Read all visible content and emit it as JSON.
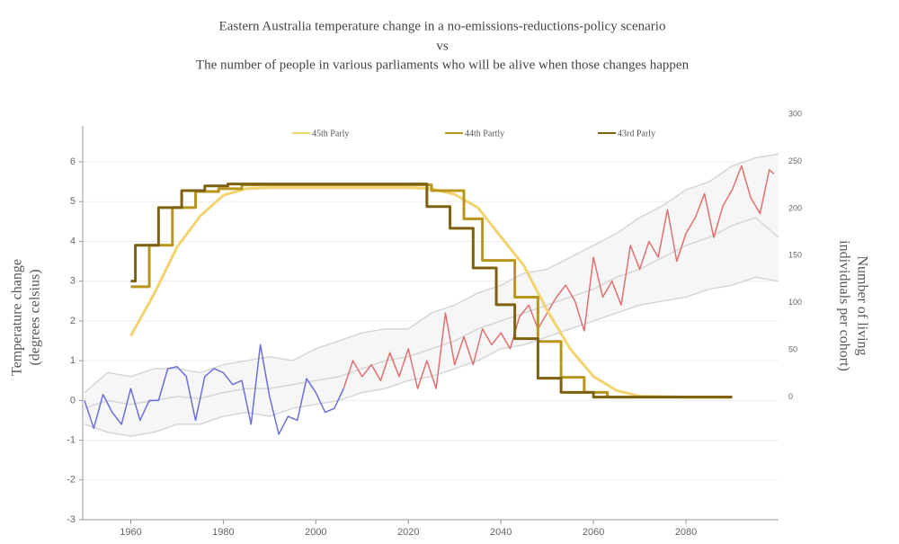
{
  "chart_data": {
    "type": "line",
    "title": [
      "Eastern Australia temperature change in a no-emissions-reductions-policy scenario",
      "vs",
      "The number of people in various parliaments who will be alive when those changes happen"
    ],
    "y_label": [
      "Temperature change",
      "(degrees celsius)"
    ],
    "y2_label": [
      "Number of living",
      "individuals per cohort)"
    ],
    "xlim": [
      1950,
      2100
    ],
    "xticks": [
      1960,
      1980,
      2000,
      2020,
      2040,
      2060,
      2080
    ],
    "ylim": [
      -3,
      7.2
    ],
    "yticks": [
      -3,
      -2,
      -1,
      0,
      1,
      2,
      3,
      4,
      5,
      6
    ],
    "y2lim": [
      -130,
      300
    ],
    "y2ticks": [
      0,
      50,
      100,
      150,
      200,
      250,
      300
    ],
    "grid": true,
    "band": {
      "color": "#d6d6d6",
      "fill": "#f6f6f6",
      "x": [
        1950,
        1955,
        1960,
        1965,
        1970,
        1975,
        1980,
        1985,
        1990,
        1995,
        2000,
        2005,
        2010,
        2015,
        2020,
        2025,
        2030,
        2035,
        2040,
        2045,
        2050,
        2055,
        2060,
        2065,
        2070,
        2075,
        2080,
        2085,
        2090,
        2095,
        2100
      ],
      "upper": [
        0.2,
        0.7,
        0.6,
        0.8,
        0.8,
        0.7,
        0.9,
        1.0,
        1.1,
        1.0,
        1.3,
        1.5,
        1.7,
        1.8,
        1.8,
        2.2,
        2.4,
        2.7,
        2.9,
        3.2,
        3.3,
        3.6,
        3.9,
        4.2,
        4.6,
        4.9,
        5.3,
        5.5,
        5.9,
        6.1,
        6.2
      ],
      "lower": [
        -0.6,
        -0.8,
        -0.9,
        -0.8,
        -0.6,
        -0.6,
        -0.4,
        -0.3,
        -0.4,
        -0.2,
        -0.1,
        0.0,
        0.2,
        0.3,
        0.5,
        0.6,
        0.8,
        1.0,
        1.3,
        1.4,
        1.6,
        1.8,
        2.0,
        2.2,
        2.4,
        2.5,
        2.6,
        2.8,
        2.9,
        3.1,
        3.0
      ]
    },
    "series": [
      {
        "color": "#d6d6d6",
        "x": [
          1950,
          1955,
          1960,
          1965,
          1970,
          1975,
          1980,
          1985,
          1990,
          1995,
          2000,
          2005,
          2010,
          2015,
          2020,
          2025,
          2030,
          2035,
          2040,
          2045,
          2050,
          2055,
          2060,
          2065,
          2070,
          2075,
          2080,
          2085,
          2090,
          2095,
          2100
        ],
        "values": [
          -0.2,
          0.0,
          -0.1,
          0.0,
          0.1,
          0.05,
          0.2,
          0.3,
          0.3,
          0.4,
          0.5,
          0.6,
          0.8,
          1.0,
          1.1,
          1.3,
          1.5,
          1.8,
          2.0,
          2.2,
          2.4,
          2.6,
          2.8,
          3.1,
          3.3,
          3.6,
          3.9,
          4.1,
          4.4,
          4.6,
          4.1
        ]
      },
      {
        "color": "#6b6fd6",
        "x": [
          1950,
          1952,
          1954,
          1956,
          1958,
          1960,
          1962,
          1964,
          1966,
          1968,
          1970,
          1972,
          1974,
          1976,
          1978,
          1980,
          1982,
          1984,
          1986,
          1988,
          1990,
          1992,
          1994,
          1996,
          1998,
          2000,
          2002,
          2004,
          2006
        ],
        "values": [
          0,
          -0.7,
          0.15,
          -0.3,
          -0.6,
          0.3,
          -0.5,
          0.0,
          0.0,
          0.8,
          0.85,
          0.6,
          -0.5,
          0.6,
          0.8,
          0.7,
          0.4,
          0.5,
          -0.6,
          1.4,
          0.1,
          -0.85,
          -0.4,
          -0.5,
          0.55,
          0.2,
          -0.3,
          -0.2,
          0.3
        ]
      },
      {
        "color": "#e07070",
        "x": [
          2006,
          2008,
          2010,
          2012,
          2014,
          2016,
          2018,
          2020,
          2022,
          2024,
          2026,
          2028,
          2030,
          2032,
          2034,
          2036,
          2038,
          2040,
          2042,
          2044,
          2046,
          2048,
          2050,
          2052,
          2054,
          2056,
          2058,
          2060,
          2062,
          2064,
          2066,
          2068,
          2070,
          2072,
          2074,
          2076,
          2078,
          2080,
          2082,
          2084,
          2086,
          2088,
          2090,
          2092,
          2094,
          2096,
          2098,
          2099
        ],
        "values": [
          0.3,
          1.0,
          0.6,
          0.9,
          0.5,
          1.2,
          0.6,
          1.3,
          0.3,
          1.0,
          0.3,
          2.2,
          0.9,
          1.6,
          0.9,
          1.8,
          1.4,
          1.7,
          1.3,
          2.1,
          2.4,
          1.8,
          2.2,
          2.6,
          2.9,
          2.5,
          1.75,
          3.6,
          2.6,
          3.0,
          2.4,
          3.9,
          3.3,
          4.0,
          3.6,
          4.8,
          3.5,
          4.2,
          4.6,
          5.2,
          4.1,
          4.9,
          5.3,
          5.9,
          5.1,
          4.7,
          5.8,
          5.7
        ]
      },
      {
        "name": "45th Parly",
        "color": "#f2d36e",
        "axis": "y2",
        "shape": "linear",
        "x": [
          1960,
          1965,
          1970,
          1975,
          1980,
          1985,
          1990,
          2020,
          2025,
          2030,
          2035,
          2040,
          2045,
          2050,
          2055,
          2060,
          2065,
          2070,
          2080,
          2090
        ],
        "values": [
          65,
          109,
          159,
          192,
          214,
          221,
          222,
          222,
          221,
          215,
          201,
          170,
          139,
          92,
          51,
          22,
          7,
          1,
          0,
          0
        ]
      },
      {
        "name": "44th Partly",
        "color": "#b8961c",
        "axis": "y2",
        "shape": "hv",
        "x": [
          1960,
          1964,
          1969,
          1974,
          1979,
          1984,
          2025,
          2032,
          2036,
          2043,
          2048,
          2053,
          2058,
          2063,
          2090
        ],
        "values": [
          117,
          161,
          201,
          218,
          221,
          225,
          219,
          189,
          145,
          106,
          59,
          21,
          5,
          0,
          0
        ]
      },
      {
        "name": "43rd Parly",
        "color": "#7d6010",
        "axis": "y2",
        "shape": "hv",
        "x": [
          1960,
          1961,
          1966,
          1971,
          1976,
          1981,
          2024,
          2029,
          2034,
          2039,
          2043,
          2048,
          2053,
          2060,
          2090
        ],
        "values": [
          123,
          161,
          201,
          219,
          224,
          226,
          202,
          179,
          137,
          98,
          62,
          20,
          5,
          0,
          0
        ]
      }
    ]
  }
}
